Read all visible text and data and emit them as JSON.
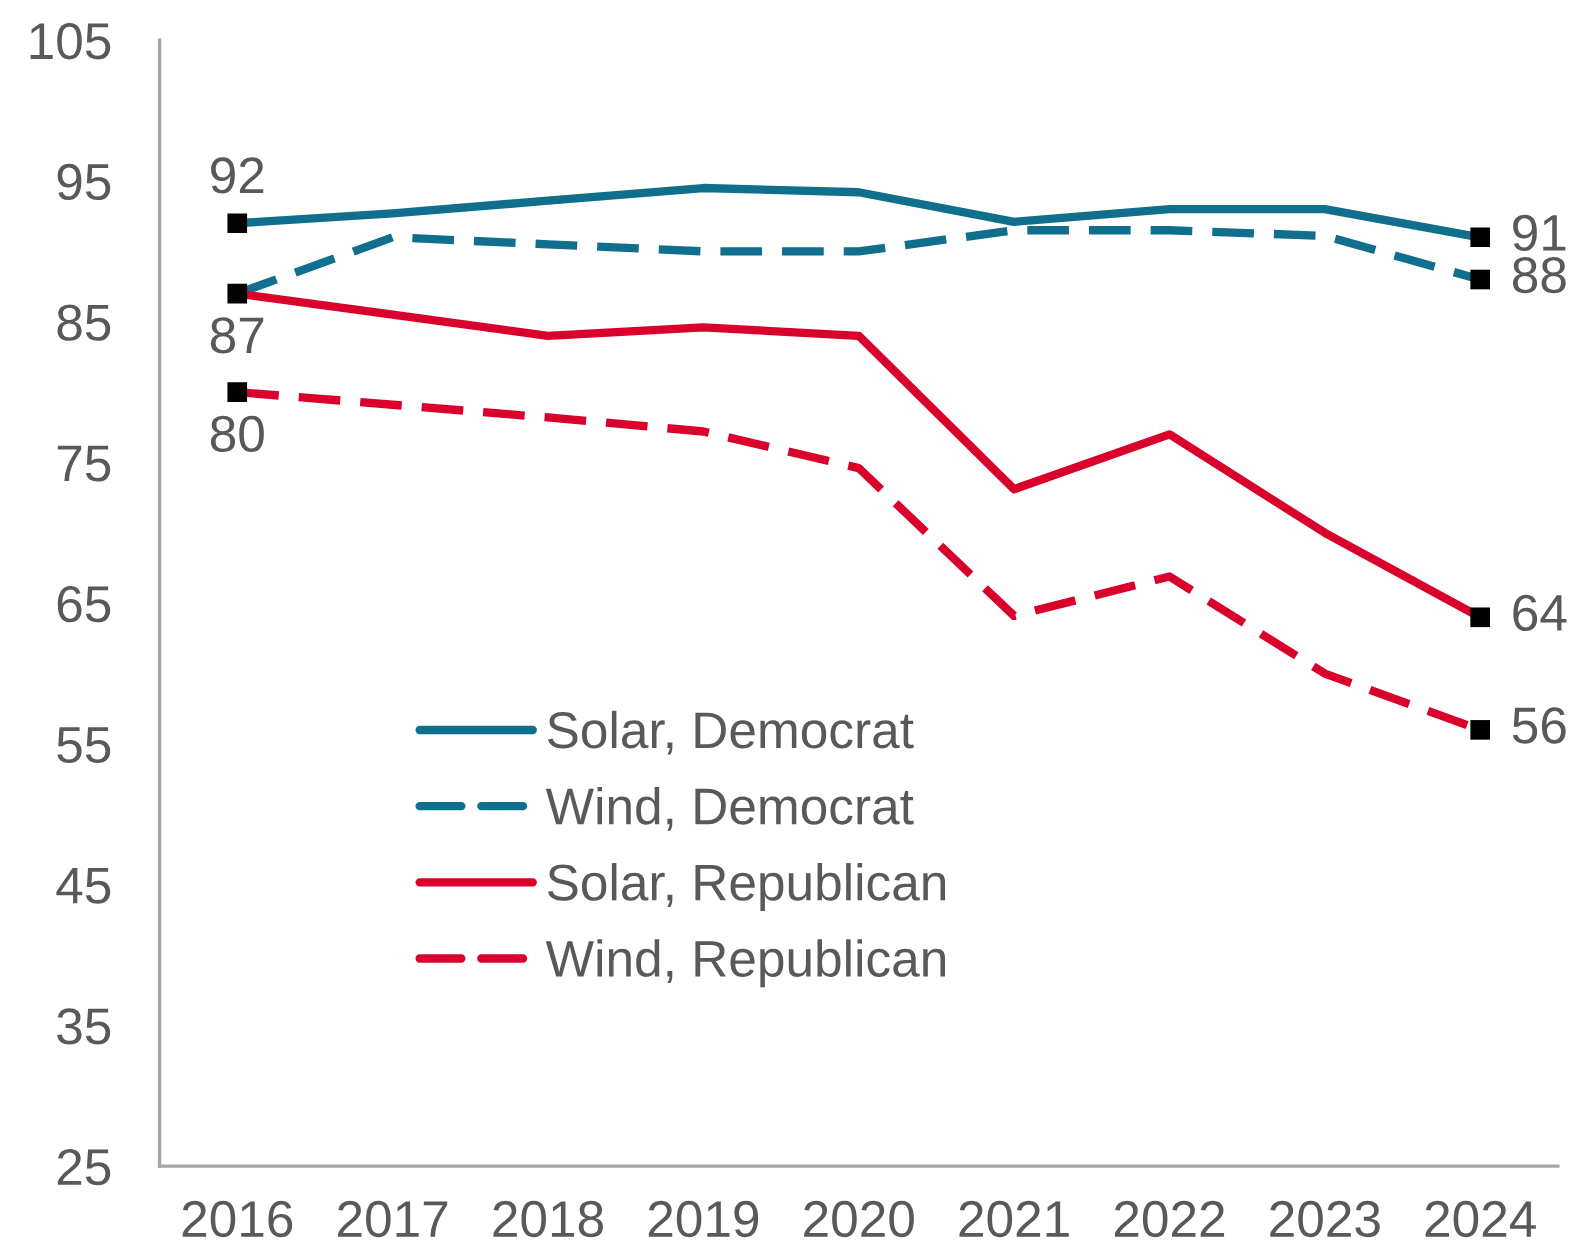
{
  "chart_data": {
    "type": "line",
    "categories": [
      "2016",
      "2017",
      "2018",
      "2019",
      "2020",
      "2021",
      "2022",
      "2023",
      "2024"
    ],
    "ylim": [
      25,
      105
    ],
    "yticks": [
      25,
      35,
      45,
      55,
      65,
      75,
      85,
      95,
      105
    ],
    "grid": false,
    "legend": "bottom left",
    "series": [
      {
        "name": "Solar, Democrat",
        "color": "#0f6f8c",
        "line_style": "solid",
        "values": [
          92,
          92.7,
          93.6,
          94.5,
          94.2,
          92.1,
          93,
          93,
          91
        ],
        "value_labels": [
          "92",
          null,
          null,
          null,
          null,
          null,
          null,
          null,
          "91"
        ]
      },
      {
        "name": "Wind, Democrat",
        "color": "#0f6f8c",
        "line_style": "dashed",
        "values": [
          87,
          91,
          90.5,
          90,
          90,
          91.5,
          91.5,
          91.1,
          88
        ],
        "value_labels": [
          null,
          null,
          null,
          null,
          null,
          null,
          null,
          null,
          "88"
        ]
      },
      {
        "name": "Solar, Republican",
        "color": "#d9002b",
        "line_style": "solid",
        "values": [
          87,
          85.5,
          84,
          84.6,
          84,
          73.1,
          77,
          70,
          64
        ],
        "value_labels": [
          "87",
          null,
          null,
          null,
          null,
          null,
          null,
          null,
          "64"
        ]
      },
      {
        "name": "Wind, Republican",
        "color": "#d9002b",
        "line_style": "dashed",
        "values": [
          80,
          79.1,
          78.2,
          77.2,
          74.6,
          64.1,
          66.9,
          60,
          56
        ],
        "value_labels": [
          "80",
          null,
          null,
          null,
          null,
          null,
          null,
          null,
          "56"
        ]
      },
      {
        "type": "scatter",
        "color": "#000000",
        "marker": "square",
        "values": [
          92,
          null,
          null,
          null,
          null,
          null,
          null,
          null,
          91
        ]
      },
      {
        "type": "scatter",
        "color": "#000000",
        "marker": "square",
        "values": [
          null,
          null,
          null,
          null,
          null,
          null,
          null,
          null,
          88
        ]
      },
      {
        "type": "scatter",
        "color": "#000000",
        "marker": "square",
        "values": [
          87,
          null,
          null,
          null,
          null,
          null,
          null,
          null,
          64
        ]
      },
      {
        "type": "scatter",
        "color": "#000000",
        "marker": "square",
        "values": [
          80,
          null,
          null,
          null,
          null,
          null,
          null,
          null,
          56
        ]
      }
    ]
  }
}
